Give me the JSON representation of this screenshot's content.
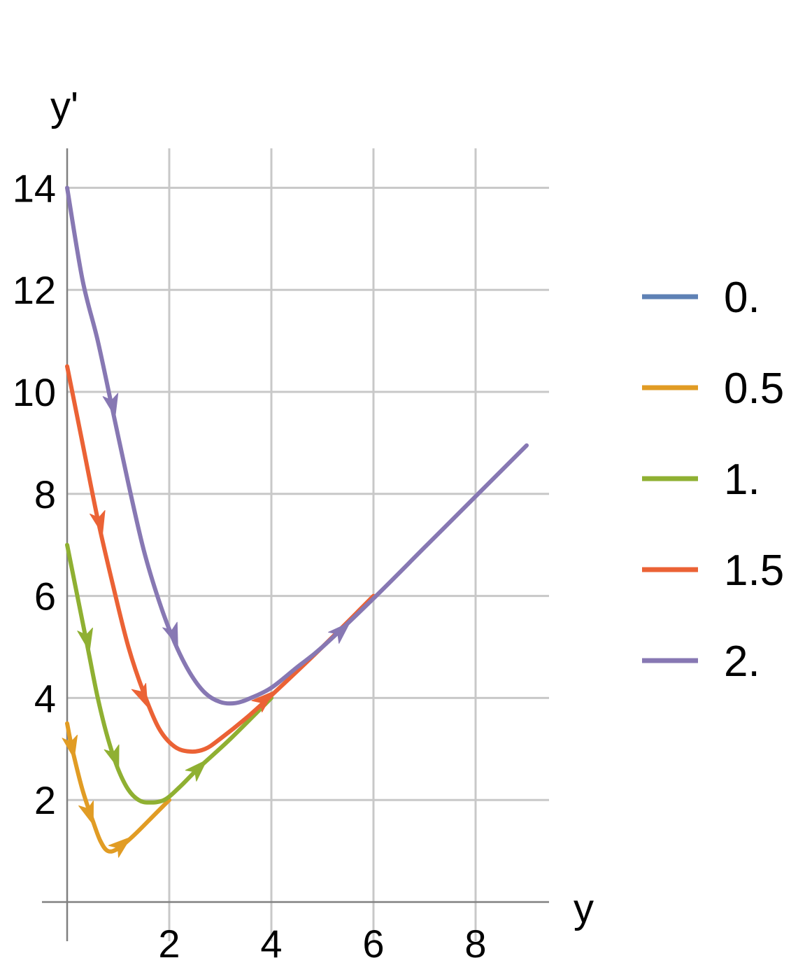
{
  "chart_data": {
    "type": "line",
    "title": "",
    "xlabel": "y",
    "ylabel": "y'",
    "xlim": [
      -0.5,
      9.5
    ],
    "ylim": [
      0,
      15
    ],
    "xticks": [
      2,
      4,
      6,
      8
    ],
    "yticks": [
      2,
      4,
      6,
      8,
      10,
      12,
      14
    ],
    "grid": true,
    "legend_position": "right",
    "series": [
      {
        "name": "0.",
        "color": "#5e81b5",
        "points": []
      },
      {
        "name": "0.5",
        "color": "#e19c24",
        "points": [
          [
            0.0,
            3.5
          ],
          [
            0.1,
            3.0
          ],
          [
            0.3,
            2.2
          ],
          [
            0.5,
            1.6
          ],
          [
            0.65,
            1.2
          ],
          [
            0.8,
            1.0
          ],
          [
            1.0,
            1.05
          ],
          [
            1.3,
            1.3
          ],
          [
            1.7,
            1.7
          ],
          [
            2.0,
            2.0
          ]
        ],
        "arrows": [
          [
            0.1,
            3.0
          ],
          [
            0.45,
            1.7
          ],
          [
            1.1,
            1.15
          ]
        ]
      },
      {
        "name": "1.",
        "color": "#8fb032",
        "points": [
          [
            0.0,
            7.0
          ],
          [
            0.2,
            6.0
          ],
          [
            0.4,
            5.0
          ],
          [
            0.6,
            4.0
          ],
          [
            0.8,
            3.2
          ],
          [
            1.0,
            2.6
          ],
          [
            1.2,
            2.2
          ],
          [
            1.4,
            2.0
          ],
          [
            1.6,
            1.95
          ],
          [
            1.9,
            2.0
          ],
          [
            2.2,
            2.25
          ],
          [
            2.6,
            2.65
          ],
          [
            3.2,
            3.2
          ],
          [
            4.0,
            4.0
          ]
        ],
        "arrows": [
          [
            0.4,
            5.1
          ],
          [
            0.95,
            2.8
          ],
          [
            2.6,
            2.65
          ]
        ]
      },
      {
        "name": "1.5",
        "color": "#eb6235",
        "points": [
          [
            0.0,
            10.5
          ],
          [
            0.3,
            9.0
          ],
          [
            0.6,
            7.5
          ],
          [
            0.9,
            6.2
          ],
          [
            1.2,
            5.0
          ],
          [
            1.5,
            4.1
          ],
          [
            1.8,
            3.4
          ],
          [
            2.1,
            3.05
          ],
          [
            2.4,
            2.95
          ],
          [
            2.7,
            3.0
          ],
          [
            3.0,
            3.2
          ],
          [
            3.5,
            3.6
          ],
          [
            4.0,
            4.05
          ],
          [
            5.0,
            5.0
          ],
          [
            6.0,
            6.0
          ]
        ],
        "arrows": [
          [
            0.65,
            7.4
          ],
          [
            1.5,
            4.0
          ],
          [
            3.9,
            4.0
          ]
        ]
      },
      {
        "name": "2.",
        "color": "#8778b3",
        "points": [
          [
            0.0,
            14.0
          ],
          [
            0.3,
            12.2
          ],
          [
            0.6,
            11.0
          ],
          [
            0.9,
            9.6
          ],
          [
            1.2,
            8.2
          ],
          [
            1.5,
            6.9
          ],
          [
            1.8,
            5.9
          ],
          [
            2.1,
            5.1
          ],
          [
            2.4,
            4.5
          ],
          [
            2.7,
            4.1
          ],
          [
            3.0,
            3.92
          ],
          [
            3.3,
            3.9
          ],
          [
            3.6,
            4.0
          ],
          [
            4.0,
            4.2
          ],
          [
            4.5,
            4.6
          ],
          [
            5.0,
            5.0
          ],
          [
            6.0,
            5.95
          ],
          [
            7.0,
            6.95
          ],
          [
            8.0,
            7.95
          ],
          [
            9.0,
            8.95
          ]
        ],
        "arrows": [
          [
            0.9,
            9.7
          ],
          [
            2.1,
            5.2
          ],
          [
            5.4,
            5.35
          ]
        ]
      }
    ]
  }
}
